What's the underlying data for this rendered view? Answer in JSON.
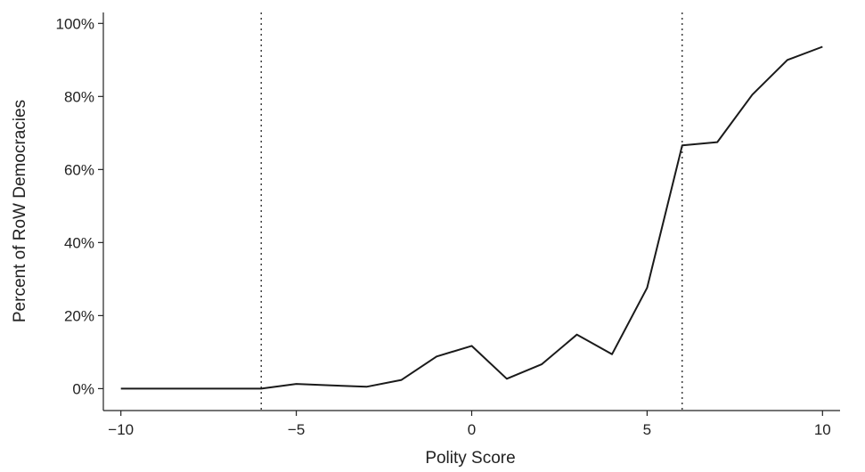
{
  "chart_data": {
    "type": "line",
    "title": "",
    "xlabel": "Polity Score",
    "ylabel": "Percent of RoW Democracies",
    "xlim": [
      -10.5,
      10.5
    ],
    "ylim": [
      -0.06,
      1.03
    ],
    "xticks": [
      -10,
      -5,
      0,
      5,
      10
    ],
    "xtick_labels": [
      "−10",
      "−5",
      "0",
      "5",
      "10"
    ],
    "yticks": [
      0,
      0.2,
      0.4,
      0.6,
      0.8,
      1.0
    ],
    "ytick_labels": [
      "0%",
      "20%",
      "40%",
      "60%",
      "80%",
      "100%"
    ],
    "grid": false,
    "reference_lines": [
      {
        "axis": "x",
        "value": -6,
        "style": "dotted"
      },
      {
        "axis": "x",
        "value": 6,
        "style": "dotted"
      }
    ],
    "series": [
      {
        "x": [
          -10,
          -9,
          -8,
          -7,
          -6,
          -5,
          -4,
          -3,
          -2,
          -1,
          0,
          1,
          2,
          3,
          4,
          5,
          6,
          7,
          8,
          9,
          10
        ],
        "y": [
          0,
          0,
          0,
          0,
          0,
          0.013,
          0.009,
          0.005,
          0.024,
          0.088,
          0.117,
          0.027,
          0.067,
          0.148,
          0.094,
          0.276,
          0.666,
          0.675,
          0.805,
          0.9,
          0.936
        ],
        "color": "#1a1a1a"
      }
    ]
  }
}
